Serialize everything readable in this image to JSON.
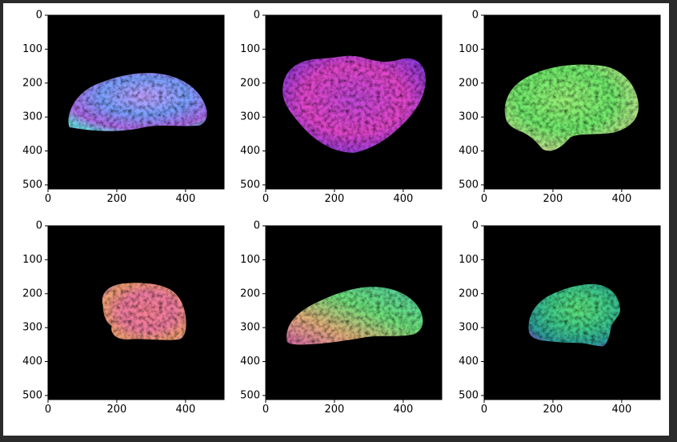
{
  "figure": {
    "layout": {
      "rows": 2,
      "cols": 3
    },
    "axes": {
      "x_ticks": [
        "0",
        "200",
        "400"
      ],
      "y_ticks": [
        "0",
        "100",
        "200",
        "300",
        "400",
        "500"
      ],
      "xlim": [
        0,
        512
      ],
      "ylim": [
        512,
        0
      ],
      "background": "#000000"
    },
    "panels": [
      {
        "id": "panel-1",
        "content": "brain-normal-map",
        "palette": [
          "#7aa0ff",
          "#b96cf0",
          "#6fd7e8"
        ]
      },
      {
        "id": "panel-2",
        "content": "brain-normal-map",
        "palette": [
          "#e046c8",
          "#8a3ad8",
          "#d85aa8"
        ]
      },
      {
        "id": "panel-3",
        "content": "brain-normal-map",
        "palette": [
          "#6ee86a",
          "#a8ec7a",
          "#d7c8a0"
        ]
      },
      {
        "id": "panel-4",
        "content": "brain-normal-map",
        "palette": [
          "#ee7aa0",
          "#f0a070",
          "#c87ad8"
        ]
      },
      {
        "id": "panel-5",
        "content": "brain-normal-map",
        "palette": [
          "#6ee07a",
          "#e0b07a",
          "#d86aa8"
        ]
      },
      {
        "id": "panel-6",
        "content": "brain-normal-map",
        "palette": [
          "#4ed07a",
          "#6ab8a8",
          "#2f9a9a"
        ]
      }
    ]
  }
}
